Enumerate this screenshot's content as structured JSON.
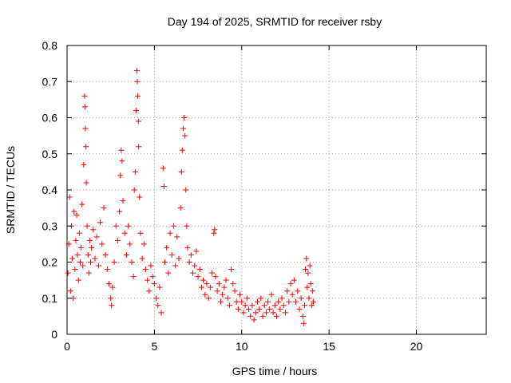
{
  "chart_data": {
    "type": "scatter",
    "title": "Day 194 of 2025, SRMTID for receiver rsby",
    "xlabel": "GPS time / hours",
    "ylabel": "SRMTID / TECUs",
    "xlim": [
      0,
      24
    ],
    "ylim": [
      0,
      0.8
    ],
    "xticks": [
      0,
      5,
      10,
      15,
      20
    ],
    "yticks": [
      0,
      0.1,
      0.2,
      0.3,
      0.4,
      0.5,
      0.6,
      0.7,
      0.8
    ],
    "xtick_labels": [
      "0",
      "5",
      "10",
      "15",
      "20"
    ],
    "ytick_labels": [
      "0",
      "0.1",
      "0.2",
      "0.3",
      "0.4",
      "0.5",
      "0.6",
      "0.7",
      "0.8"
    ],
    "grid": true,
    "marker": "+",
    "color": "#ff0000",
    "series": [
      {
        "name": "SRMTID",
        "points": [
          [
            0.05,
            0.17
          ],
          [
            0.1,
            0.25
          ],
          [
            0.15,
            0.38
          ],
          [
            0.2,
            0.12
          ],
          [
            0.25,
            0.3
          ],
          [
            0.3,
            0.21
          ],
          [
            0.35,
            0.1
          ],
          [
            0.4,
            0.34
          ],
          [
            0.45,
            0.18
          ],
          [
            0.5,
            0.26
          ],
          [
            0.55,
            0.33
          ],
          [
            0.6,
            0.22
          ],
          [
            0.65,
            0.15
          ],
          [
            0.7,
            0.28
          ],
          [
            0.75,
            0.2
          ],
          [
            0.8,
            0.24
          ],
          [
            0.85,
            0.36
          ],
          [
            0.9,
            0.19
          ],
          [
            0.95,
            0.47
          ],
          [
            1.0,
            0.66
          ],
          [
            1.02,
            0.63
          ],
          [
            1.05,
            0.57
          ],
          [
            1.08,
            0.52
          ],
          [
            1.1,
            0.42
          ],
          [
            1.15,
            0.3
          ],
          [
            1.2,
            0.22
          ],
          [
            1.25,
            0.17
          ],
          [
            1.3,
            0.26
          ],
          [
            1.35,
            0.2
          ],
          [
            1.4,
            0.24
          ],
          [
            1.5,
            0.29
          ],
          [
            1.6,
            0.21
          ],
          [
            1.7,
            0.27
          ],
          [
            1.8,
            0.19
          ],
          [
            1.9,
            0.31
          ],
          [
            2.0,
            0.25
          ],
          [
            2.1,
            0.35
          ],
          [
            2.2,
            0.22
          ],
          [
            2.3,
            0.18
          ],
          [
            2.4,
            0.14
          ],
          [
            2.5,
            0.1
          ],
          [
            2.55,
            0.08
          ],
          [
            2.6,
            0.13
          ],
          [
            2.7,
            0.2
          ],
          [
            2.8,
            0.3
          ],
          [
            2.9,
            0.26
          ],
          [
            3.0,
            0.34
          ],
          [
            3.05,
            0.44
          ],
          [
            3.1,
            0.51
          ],
          [
            3.15,
            0.48
          ],
          [
            3.2,
            0.37
          ],
          [
            3.3,
            0.28
          ],
          [
            3.4,
            0.22
          ],
          [
            3.5,
            0.3
          ],
          [
            3.6,
            0.25
          ],
          [
            3.7,
            0.2
          ],
          [
            3.8,
            0.16
          ],
          [
            3.85,
            0.4
          ],
          [
            3.9,
            0.45
          ],
          [
            3.95,
            0.62
          ],
          [
            4.0,
            0.73
          ],
          [
            4.02,
            0.7
          ],
          [
            4.05,
            0.66
          ],
          [
            4.08,
            0.59
          ],
          [
            4.1,
            0.52
          ],
          [
            4.15,
            0.38
          ],
          [
            4.2,
            0.28
          ],
          [
            4.3,
            0.21
          ],
          [
            4.4,
            0.25
          ],
          [
            4.5,
            0.18
          ],
          [
            4.6,
            0.15
          ],
          [
            4.7,
            0.12
          ],
          [
            4.8,
            0.19
          ],
          [
            4.9,
            0.16
          ],
          [
            5.0,
            0.14
          ],
          [
            5.1,
            0.1
          ],
          [
            5.2,
            0.08
          ],
          [
            5.3,
            0.13
          ],
          [
            5.4,
            0.06
          ],
          [
            5.5,
            0.46
          ],
          [
            5.55,
            0.41
          ],
          [
            5.6,
            0.2
          ],
          [
            5.7,
            0.24
          ],
          [
            5.8,
            0.17
          ],
          [
            5.9,
            0.28
          ],
          [
            6.0,
            0.22
          ],
          [
            6.1,
            0.3
          ],
          [
            6.2,
            0.19
          ],
          [
            6.3,
            0.27
          ],
          [
            6.4,
            0.21
          ],
          [
            6.5,
            0.35
          ],
          [
            6.55,
            0.45
          ],
          [
            6.6,
            0.51
          ],
          [
            6.65,
            0.57
          ],
          [
            6.7,
            0.6
          ],
          [
            6.75,
            0.55
          ],
          [
            6.8,
            0.4
          ],
          [
            6.85,
            0.3
          ],
          [
            6.9,
            0.24
          ],
          [
            7.0,
            0.2
          ],
          [
            7.1,
            0.22
          ],
          [
            7.2,
            0.17
          ],
          [
            7.3,
            0.19
          ],
          [
            7.4,
            0.23
          ],
          [
            7.5,
            0.16
          ],
          [
            7.6,
            0.18
          ],
          [
            7.7,
            0.13
          ],
          [
            7.8,
            0.15
          ],
          [
            7.9,
            0.11
          ],
          [
            8.0,
            0.14
          ],
          [
            8.1,
            0.1
          ],
          [
            8.2,
            0.13
          ],
          [
            8.3,
            0.17
          ],
          [
            8.4,
            0.28
          ],
          [
            8.45,
            0.29
          ],
          [
            8.5,
            0.16
          ],
          [
            8.6,
            0.12
          ],
          [
            8.7,
            0.14
          ],
          [
            8.8,
            0.09
          ],
          [
            8.9,
            0.11
          ],
          [
            9.0,
            0.13
          ],
          [
            9.1,
            0.15
          ],
          [
            9.2,
            0.1
          ],
          [
            9.3,
            0.08
          ],
          [
            9.4,
            0.18
          ],
          [
            9.5,
            0.14
          ],
          [
            9.6,
            0.12
          ],
          [
            9.7,
            0.09
          ],
          [
            9.8,
            0.07
          ],
          [
            9.9,
            0.11
          ],
          [
            10.0,
            0.09
          ],
          [
            10.1,
            0.06
          ],
          [
            10.2,
            0.08
          ],
          [
            10.3,
            0.1
          ],
          [
            10.4,
            0.07
          ],
          [
            10.5,
            0.05
          ],
          [
            10.6,
            0.08
          ],
          [
            10.7,
            0.04
          ],
          [
            10.8,
            0.06
          ],
          [
            10.9,
            0.09
          ],
          [
            11.0,
            0.07
          ],
          [
            11.1,
            0.1
          ],
          [
            11.2,
            0.05
          ],
          [
            11.3,
            0.08
          ],
          [
            11.4,
            0.06
          ],
          [
            11.5,
            0.09
          ],
          [
            11.6,
            0.07
          ],
          [
            11.7,
            0.11
          ],
          [
            11.8,
            0.06
          ],
          [
            11.9,
            0.08
          ],
          [
            12.0,
            0.05
          ],
          [
            12.1,
            0.09
          ],
          [
            12.2,
            0.07
          ],
          [
            12.3,
            0.1
          ],
          [
            12.4,
            0.08
          ],
          [
            12.5,
            0.06
          ],
          [
            12.6,
            0.12
          ],
          [
            12.7,
            0.09
          ],
          [
            12.8,
            0.14
          ],
          [
            12.9,
            0.11
          ],
          [
            13.0,
            0.15
          ],
          [
            13.1,
            0.09
          ],
          [
            13.2,
            0.12
          ],
          [
            13.3,
            0.07
          ],
          [
            13.4,
            0.1
          ],
          [
            13.5,
            0.05
          ],
          [
            13.55,
            0.03
          ],
          [
            13.6,
            0.08
          ],
          [
            13.65,
            0.18
          ],
          [
            13.7,
            0.21
          ],
          [
            13.75,
            0.13
          ],
          [
            13.8,
            0.17
          ],
          [
            13.85,
            0.1
          ],
          [
            13.9,
            0.19
          ],
          [
            13.95,
            0.14
          ],
          [
            14.0,
            0.08
          ],
          [
            14.05,
            0.12
          ],
          [
            14.1,
            0.09
          ]
        ]
      }
    ]
  }
}
